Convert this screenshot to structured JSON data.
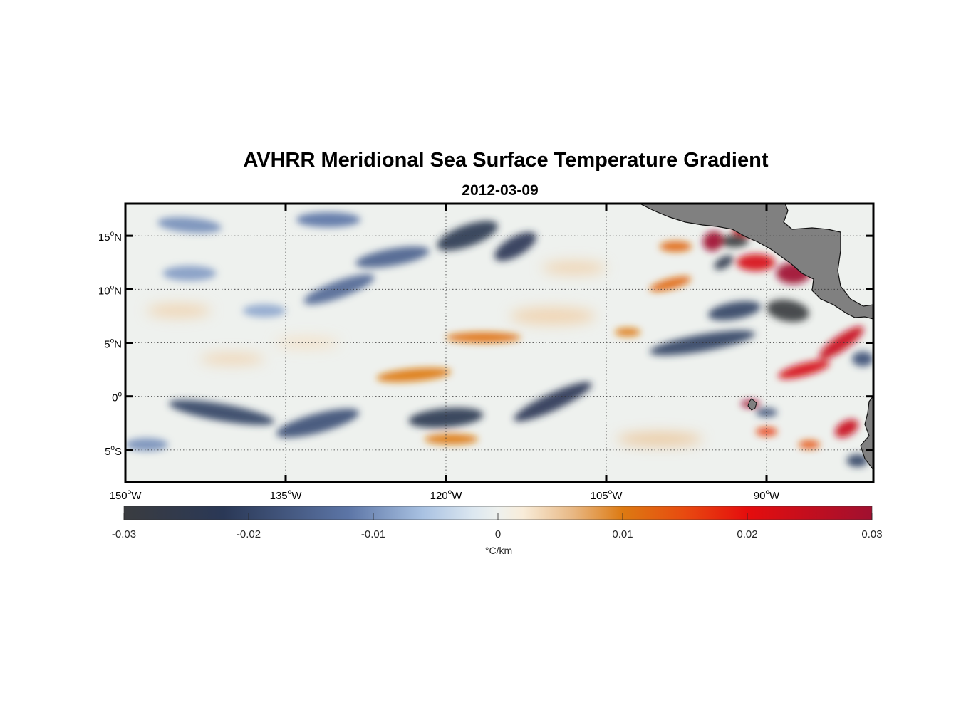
{
  "figure": {
    "title": "AVHRR Meridional Sea Surface Temperature Gradient",
    "subtitle": "2012-03-09"
  },
  "map": {
    "lon_range": [
      -150,
      -80
    ],
    "lat_range": [
      -8,
      18
    ],
    "lat_ticks": [
      {
        "value": 15,
        "num": "15",
        "hemi": "N"
      },
      {
        "value": 10,
        "num": "10",
        "hemi": "N"
      },
      {
        "value": 5,
        "num": "5",
        "hemi": "N"
      },
      {
        "value": 0,
        "num": "0",
        "hemi": ""
      },
      {
        "value": -5,
        "num": "5",
        "hemi": "S"
      }
    ],
    "lon_ticks": [
      {
        "value": -150,
        "num": "150",
        "hemi": "W"
      },
      {
        "value": -135,
        "num": "135",
        "hemi": "W"
      },
      {
        "value": -120,
        "num": "120",
        "hemi": "W"
      },
      {
        "value": -105,
        "num": "105",
        "hemi": "W"
      },
      {
        "value": -90,
        "num": "90",
        "hemi": "W"
      }
    ],
    "degree_symbol": "o",
    "land_color": "#808080",
    "features": [
      {
        "type": "neg",
        "lon": -118,
        "lat": 15,
        "rlon": 3.0,
        "rlat": 1.0,
        "rot": -20,
        "v": 0.024
      },
      {
        "type": "neg",
        "lon": -113.5,
        "lat": 14,
        "rlon": 2.2,
        "rlat": 0.9,
        "rot": -30,
        "v": 0.022
      },
      {
        "type": "neg",
        "lon": -125,
        "lat": 13,
        "rlon": 3.5,
        "rlat": 0.8,
        "rot": -10,
        "v": 0.015
      },
      {
        "type": "neg",
        "lon": -131,
        "lat": 16.5,
        "rlon": 3.0,
        "rlat": 0.7,
        "rot": 0,
        "v": 0.012
      },
      {
        "type": "neg",
        "lon": -144,
        "lat": 16,
        "rlon": 3.0,
        "rlat": 0.7,
        "rot": 5,
        "v": 0.01
      },
      {
        "type": "neg",
        "lon": -130,
        "lat": 10,
        "rlon": 3.5,
        "rlat": 0.8,
        "rot": -20,
        "v": 0.014
      },
      {
        "type": "neg",
        "lon": -144,
        "lat": 11.5,
        "rlon": 2.5,
        "rlat": 0.7,
        "rot": 0,
        "v": 0.009
      },
      {
        "type": "neg",
        "lon": -137,
        "lat": 8,
        "rlon": 2.0,
        "rlat": 0.6,
        "rot": 0,
        "v": 0.008
      },
      {
        "type": "neg",
        "lon": -141,
        "lat": -1.5,
        "rlon": 5.0,
        "rlat": 0.8,
        "rot": 10,
        "v": 0.02
      },
      {
        "type": "neg",
        "lon": -132,
        "lat": -2.5,
        "rlon": 4.0,
        "rlat": 0.9,
        "rot": -15,
        "v": 0.018
      },
      {
        "type": "neg",
        "lon": -120,
        "lat": -2,
        "rlon": 3.5,
        "rlat": 0.9,
        "rot": -5,
        "v": 0.024
      },
      {
        "type": "neg",
        "lon": -110,
        "lat": -0.5,
        "rlon": 4.0,
        "rlat": 0.8,
        "rot": -25,
        "v": 0.022
      },
      {
        "type": "neg",
        "lon": -148,
        "lat": -4.5,
        "rlon": 2.0,
        "rlat": 0.6,
        "rot": 0,
        "v": 0.01
      },
      {
        "type": "neg",
        "lon": -96,
        "lat": 5,
        "rlon": 5.0,
        "rlat": 0.8,
        "rot": -10,
        "v": 0.02
      },
      {
        "type": "neg",
        "lon": -93,
        "lat": 8,
        "rlon": 2.5,
        "rlat": 0.8,
        "rot": -10,
        "v": 0.02
      },
      {
        "type": "neg",
        "lon": -88,
        "lat": 8,
        "rlon": 2.0,
        "rlat": 1.0,
        "rot": 10,
        "v": 0.03
      },
      {
        "type": "neg",
        "lon": -93,
        "lat": 14.5,
        "rlon": 1.3,
        "rlat": 0.6,
        "rot": 0,
        "v": 0.03
      },
      {
        "type": "neg",
        "lon": -94,
        "lat": 12.5,
        "rlon": 1.0,
        "rlat": 0.5,
        "rot": -30,
        "v": 0.025
      },
      {
        "type": "neg",
        "lon": -90,
        "lat": -1.5,
        "rlon": 1.0,
        "rlat": 0.4,
        "rot": 0,
        "v": 0.018
      },
      {
        "type": "neg",
        "lon": -81.5,
        "lat": -6,
        "rlon": 1.0,
        "rlat": 0.6,
        "rot": 0,
        "v": 0.02
      },
      {
        "type": "neg",
        "lon": -81,
        "lat": 3.5,
        "rlon": 1.0,
        "rlat": 0.7,
        "rot": 0,
        "v": 0.018
      },
      {
        "type": "pos",
        "lon": -95,
        "lat": 14.5,
        "rlon": 1.0,
        "rlat": 0.9,
        "rot": -40,
        "v": 0.03
      },
      {
        "type": "pos",
        "lon": -92,
        "lat": 15.5,
        "rlon": 1.2,
        "rlat": 0.5,
        "rot": 0,
        "v": 0.025
      },
      {
        "type": "pos",
        "lon": -98.5,
        "lat": 14,
        "rlon": 1.5,
        "rlat": 0.5,
        "rot": 0,
        "v": 0.012
      },
      {
        "type": "pos",
        "lon": -99,
        "lat": 10.5,
        "rlon": 2.0,
        "rlat": 0.5,
        "rot": -15,
        "v": 0.012
      },
      {
        "type": "pos",
        "lon": -91,
        "lat": 12.5,
        "rlon": 1.8,
        "rlat": 0.8,
        "rot": 0,
        "v": 0.022
      },
      {
        "type": "pos",
        "lon": -87.5,
        "lat": 11.5,
        "rlon": 1.6,
        "rlat": 1.0,
        "rot": 0,
        "v": 0.03
      },
      {
        "type": "pos",
        "lon": -83,
        "lat": 5,
        "rlon": 2.5,
        "rlat": 0.7,
        "rot": -35,
        "v": 0.024
      },
      {
        "type": "pos",
        "lon": -86.5,
        "lat": 2.5,
        "rlon": 2.5,
        "rlat": 0.6,
        "rot": -15,
        "v": 0.022
      },
      {
        "type": "pos",
        "lon": -91.5,
        "lat": -0.7,
        "rlon": 0.9,
        "rlat": 0.35,
        "rot": 0,
        "v": 0.03
      },
      {
        "type": "pos",
        "lon": -90,
        "lat": -3.3,
        "rlon": 1.0,
        "rlat": 0.4,
        "rot": 0,
        "v": 0.016
      },
      {
        "type": "pos",
        "lon": -82.5,
        "lat": -3,
        "rlon": 1.2,
        "rlat": 0.7,
        "rot": -30,
        "v": 0.024
      },
      {
        "type": "pos",
        "lon": -86,
        "lat": -4.5,
        "rlon": 1.0,
        "rlat": 0.4,
        "rot": 0,
        "v": 0.014
      },
      {
        "type": "pos",
        "lon": -116.5,
        "lat": 5.5,
        "rlon": 3.5,
        "rlat": 0.5,
        "rot": 0,
        "v": 0.011
      },
      {
        "type": "pos",
        "lon": -123,
        "lat": 2,
        "rlon": 3.5,
        "rlat": 0.6,
        "rot": -5,
        "v": 0.01
      },
      {
        "type": "pos",
        "lon": -119.5,
        "lat": -4,
        "rlon": 2.5,
        "rlat": 0.5,
        "rot": 0,
        "v": 0.01
      },
      {
        "type": "pos",
        "lon": -103,
        "lat": 6,
        "rlon": 1.2,
        "rlat": 0.4,
        "rot": 0,
        "v": 0.01
      },
      {
        "type": "pos",
        "lon": -140,
        "lat": 3.5,
        "rlon": 3.0,
        "rlat": 0.5,
        "rot": 0,
        "v": 0.004
      },
      {
        "type": "pos",
        "lon": -133,
        "lat": 5,
        "rlon": 3.0,
        "rlat": 0.5,
        "rot": 0,
        "v": 0.003
      },
      {
        "type": "pos",
        "lon": -110,
        "lat": 7.5,
        "rlon": 4.0,
        "rlat": 0.8,
        "rot": 0,
        "v": 0.004
      },
      {
        "type": "pos",
        "lon": -100,
        "lat": -4,
        "rlon": 4.0,
        "rlat": 0.6,
        "rot": 0,
        "v": 0.005
      },
      {
        "type": "pos",
        "lon": -108,
        "lat": 12,
        "rlon": 3.0,
        "rlat": 0.6,
        "rot": 0,
        "v": 0.004
      },
      {
        "type": "pos",
        "lon": -145,
        "lat": 8,
        "rlon": 3.0,
        "rlat": 0.6,
        "rot": 0,
        "v": 0.004
      }
    ]
  },
  "colorbar": {
    "min": -0.03,
    "max": 0.03,
    "ticks": [
      {
        "value": -0.03,
        "label": "-0.03"
      },
      {
        "value": -0.02,
        "label": "-0.02"
      },
      {
        "value": -0.01,
        "label": "-0.01"
      },
      {
        "value": 0,
        "label": "0"
      },
      {
        "value": 0.01,
        "label": "0.01"
      },
      {
        "value": 0.02,
        "label": "0.02"
      },
      {
        "value": 0.03,
        "label": "0.03"
      }
    ],
    "unit_label": "°C/km",
    "stops": [
      {
        "value": -0.03,
        "color": "#3a3c40"
      },
      {
        "value": -0.022,
        "color": "#2a3856"
      },
      {
        "value": -0.012,
        "color": "#5c75a6"
      },
      {
        "value": -0.006,
        "color": "#a9c2e2"
      },
      {
        "value": -0.002,
        "color": "#dce7f0"
      },
      {
        "value": 0.0,
        "color": "#eef1ee"
      },
      {
        "value": 0.002,
        "color": "#f8ecd9"
      },
      {
        "value": 0.006,
        "color": "#e8b884"
      },
      {
        "value": 0.01,
        "color": "#dd7a12"
      },
      {
        "value": 0.015,
        "color": "#e84a10"
      },
      {
        "value": 0.02,
        "color": "#e50d0d"
      },
      {
        "value": 0.03,
        "color": "#a01030"
      }
    ]
  }
}
